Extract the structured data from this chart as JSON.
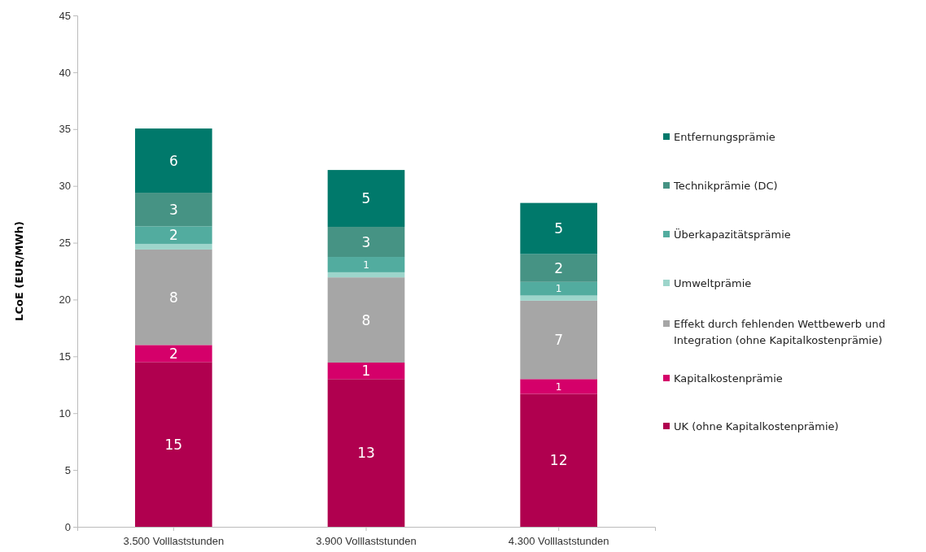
{
  "chart_data": {
    "type": "bar",
    "stacked": true,
    "ylabel": "LCoE (EUR/MWh)",
    "categories": [
      "3.500 Volllaststunden",
      "3.900 Volllaststunden",
      "4.300 Volllaststunden"
    ],
    "ylim": [
      0,
      45
    ],
    "yticks": [
      0,
      5,
      10,
      15,
      20,
      25,
      30,
      35,
      40,
      45
    ],
    "grid": false,
    "legend": "right",
    "series": [
      {
        "name": "UK (ohne Kapitalkostenprämie)",
        "color": "#b0004f",
        "values": [
          14.5,
          13.0,
          11.7
        ],
        "value_labels": [
          "15",
          "13",
          "12"
        ]
      },
      {
        "name": "Kapitalkostenprämie",
        "color": "#d5006a",
        "values": [
          1.5,
          1.45,
          1.3
        ],
        "value_labels": [
          "2",
          "1",
          "1"
        ]
      },
      {
        "name": "Effekt durch fehlenden Wettbewerb und Integration (ohne Kapitalkostenprämie)",
        "color": "#a6a6a6",
        "values": [
          8.4,
          7.5,
          6.9
        ],
        "value_labels": [
          "8",
          "8",
          "7"
        ]
      },
      {
        "name": "Umweltprämie",
        "color": "#9dd5cb",
        "values": [
          0.5,
          0.45,
          0.45
        ],
        "value_labels": [
          null,
          null,
          null
        ]
      },
      {
        "name": "Überkapazitätsprämie",
        "color": "#52ac9f",
        "values": [
          1.55,
          1.35,
          1.2
        ],
        "value_labels": [
          "2",
          "1",
          "1"
        ]
      },
      {
        "name": "Technikprämie (DC)",
        "color": "#469384",
        "values": [
          2.95,
          2.65,
          2.45
        ],
        "value_labels": [
          "3",
          "3",
          "2"
        ]
      },
      {
        "name": "Entfernungsprämie",
        "color": "#00796b",
        "values": [
          5.65,
          5.0,
          4.5
        ],
        "value_labels": [
          "6",
          "5",
          "5"
        ]
      }
    ]
  }
}
